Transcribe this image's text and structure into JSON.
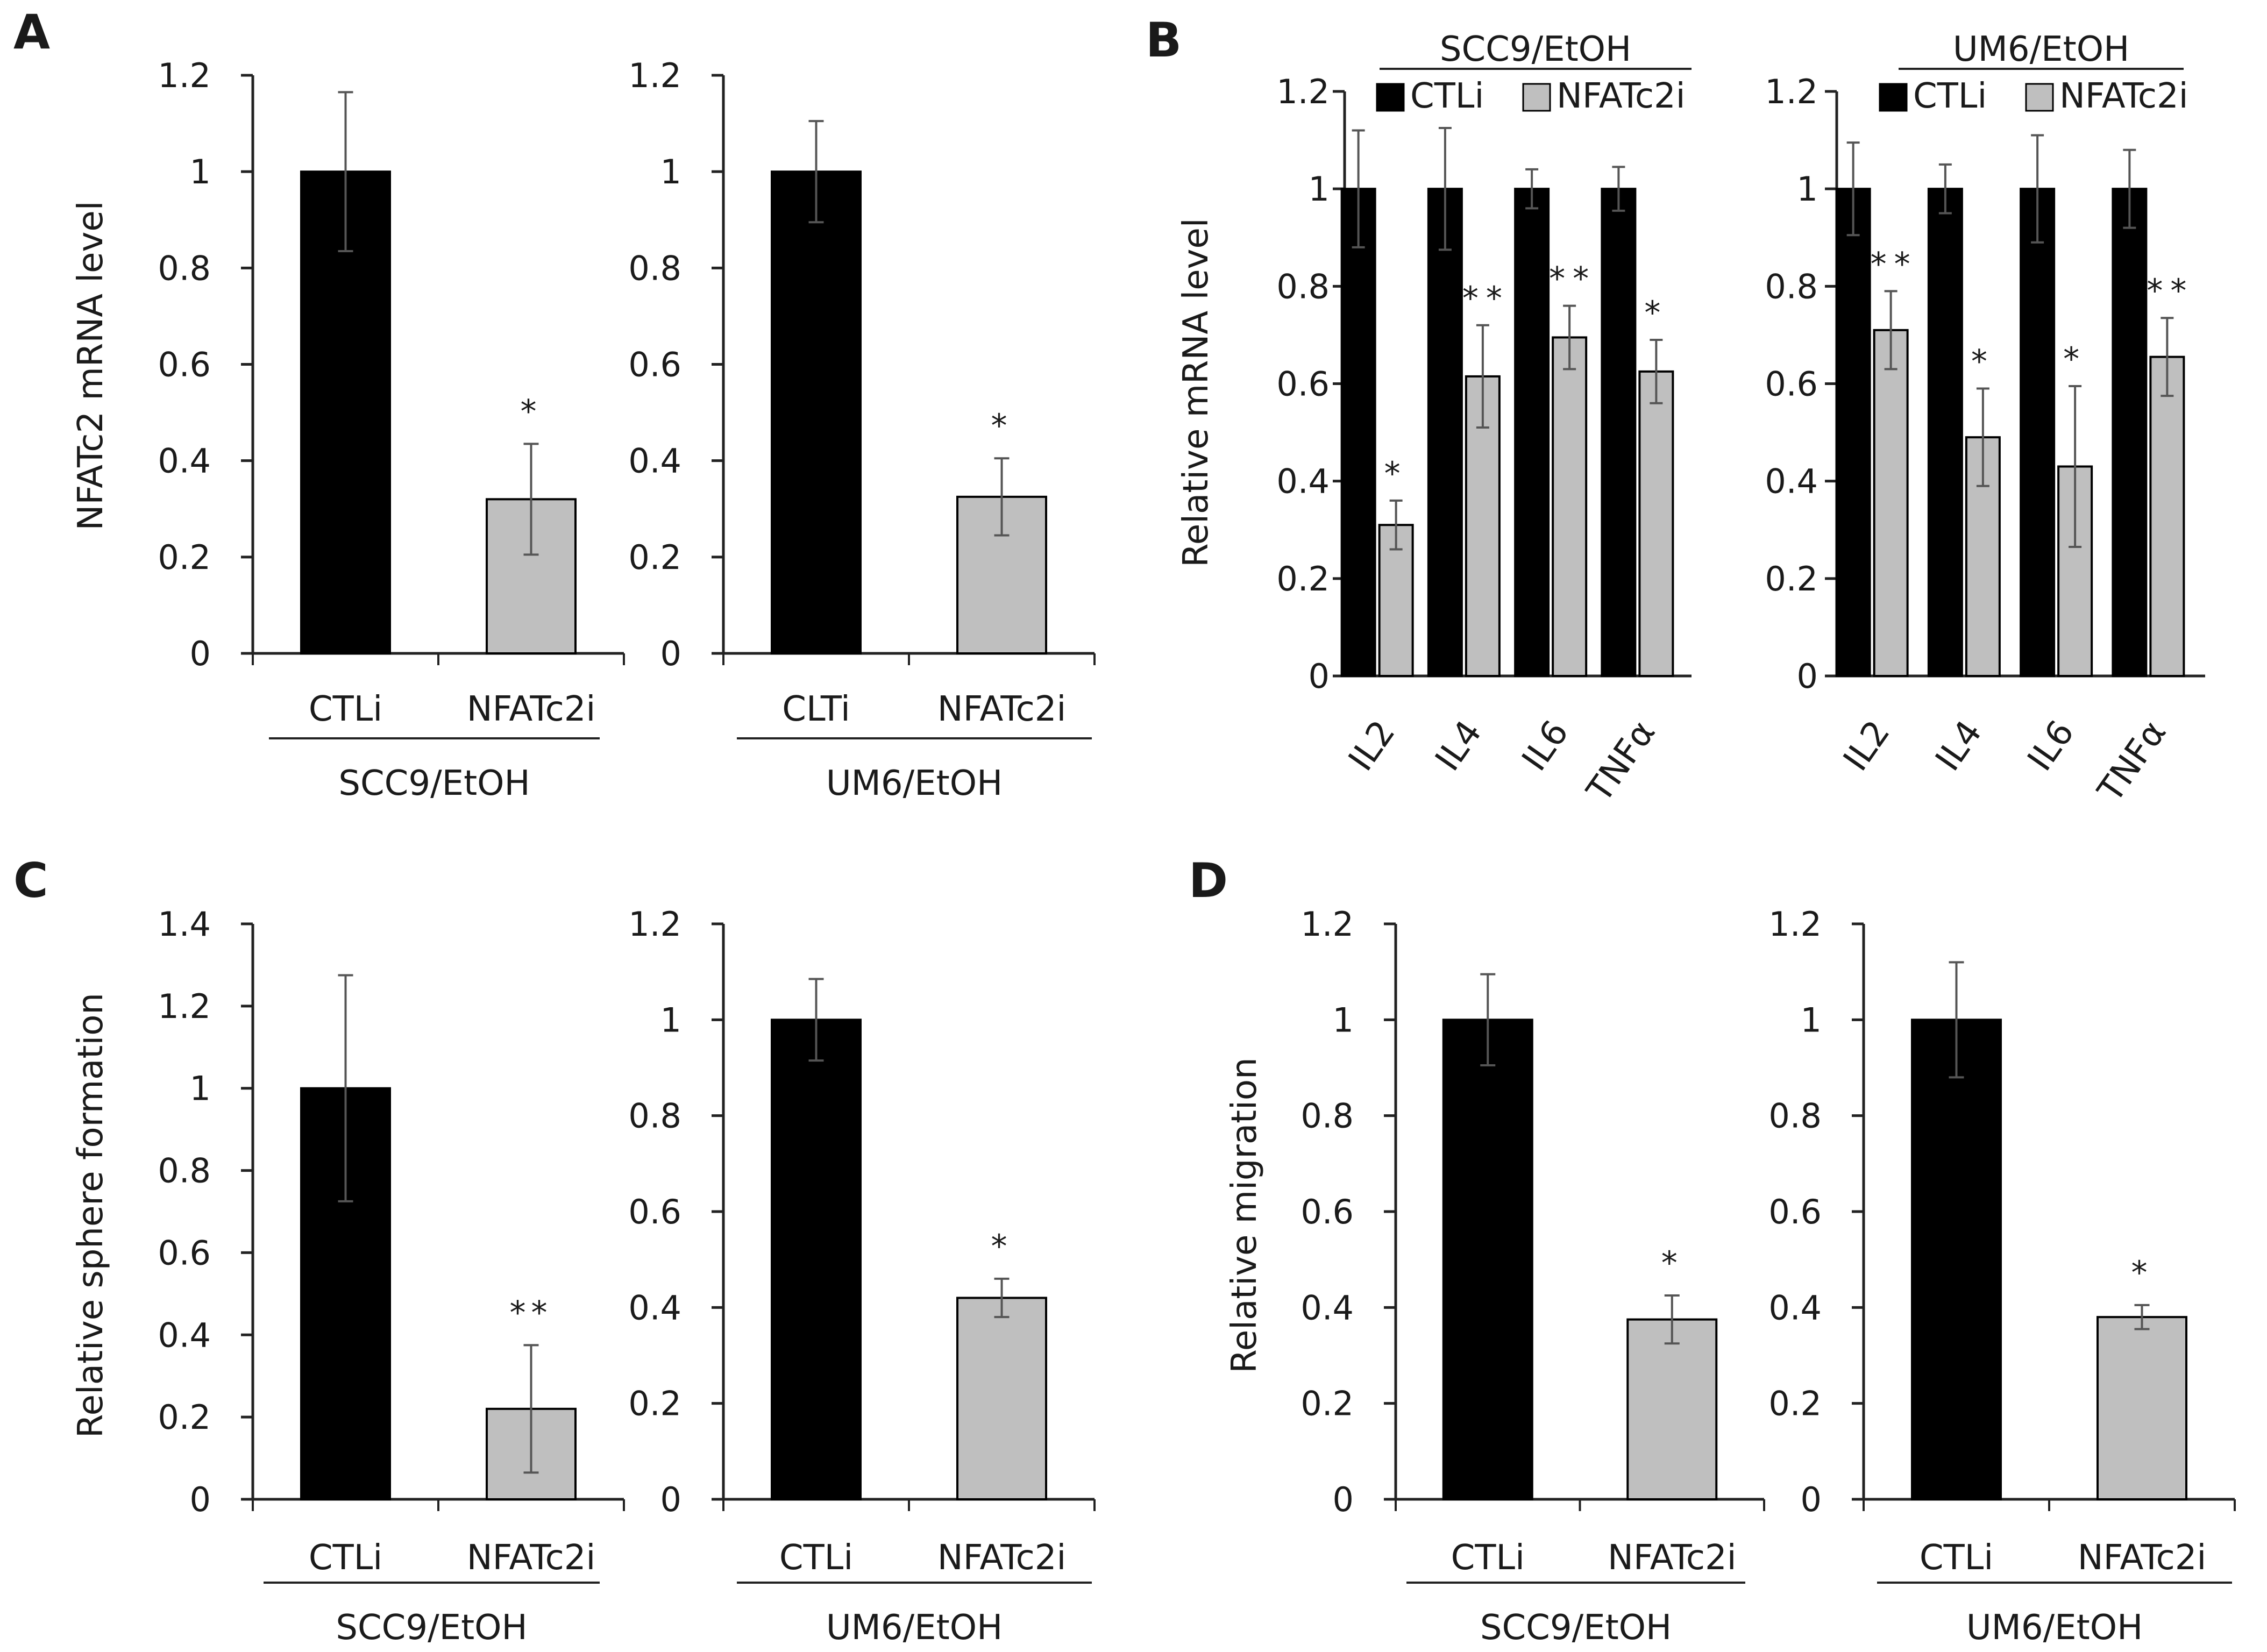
{
  "chart_data": [
    {
      "panel": "A",
      "type": "bar",
      "ylabel": "NFATc2 mRNA level",
      "ylim": [
        0,
        1.2
      ],
      "yticks": [
        "0",
        "0.2",
        "0.4",
        "0.6",
        "0.8",
        "1",
        "1.2"
      ],
      "categories": [
        "CTLi",
        "NFATc2i"
      ],
      "group_label": "SCC9/EtOH",
      "values": [
        1.0,
        0.32
      ],
      "errors": [
        0.165,
        0.115
      ],
      "significance": [
        "",
        "*"
      ],
      "colors": [
        "#000000",
        "#bfbfbf"
      ]
    },
    {
      "panel": "",
      "type": "bar",
      "ylabel": "",
      "ylim": [
        0,
        1.2
      ],
      "yticks": [
        "0",
        "0.2",
        "0.4",
        "0.6",
        "0.8",
        "1",
        "1.2"
      ],
      "categories": [
        "CLTi",
        "NFATc2i"
      ],
      "group_label": "UM6/EtOH",
      "values": [
        1.0,
        0.325
      ],
      "errors": [
        0.105,
        0.08
      ],
      "significance": [
        "",
        "*"
      ],
      "colors": [
        "#000000",
        "#bfbfbf"
      ]
    },
    {
      "panel": "B",
      "type": "bar",
      "ylabel": "Relative mRNA level",
      "ylim": [
        0,
        1.2
      ],
      "yticks": [
        "0",
        "0.2",
        "0.4",
        "0.6",
        "0.8",
        "1",
        "1.2"
      ],
      "title": "SCC9/EtOH",
      "categories": [
        "IL2",
        "IL4",
        "IL6",
        "TNFα"
      ],
      "legend": [
        "CTLi",
        "NFATc2i"
      ],
      "series": [
        {
          "name": "CTLi",
          "values": [
            1.0,
            1.0,
            1.0,
            1.0
          ],
          "errors": [
            0.12,
            0.125,
            0.04,
            0.045
          ],
          "significance": [
            "",
            "",
            "",
            ""
          ],
          "color": "#000000"
        },
        {
          "name": "NFATc2i",
          "values": [
            0.31,
            0.615,
            0.695,
            0.625
          ],
          "errors": [
            0.05,
            0.105,
            0.065,
            0.065
          ],
          "significance": [
            "*",
            "**",
            "**",
            "*"
          ],
          "color": "#bfbfbf"
        }
      ]
    },
    {
      "panel": "",
      "type": "bar",
      "ylabel": "",
      "ylim": [
        0,
        1.2
      ],
      "yticks": [
        "0",
        "0.2",
        "0.4",
        "0.6",
        "0.8",
        "1",
        "1.2"
      ],
      "title": "UM6/EtOH",
      "categories": [
        "IL2",
        "IL4",
        "IL6",
        "TNFα"
      ],
      "legend": [
        "CTLi",
        "NFATc2i"
      ],
      "series": [
        {
          "name": "CTLi",
          "values": [
            1.0,
            1.0,
            1.0,
            1.0
          ],
          "errors": [
            0.095,
            0.05,
            0.11,
            0.08
          ],
          "significance": [
            "",
            "",
            "",
            ""
          ],
          "color": "#000000"
        },
        {
          "name": "NFATc2i",
          "values": [
            0.71,
            0.49,
            0.43,
            0.655
          ],
          "errors": [
            0.08,
            0.1,
            0.165,
            0.08
          ],
          "significance": [
            "**",
            "*",
            "*",
            "**"
          ],
          "color": "#bfbfbf"
        }
      ]
    },
    {
      "panel": "C",
      "type": "bar",
      "ylabel": "Relative sphere formation",
      "ylim": [
        0,
        1.4
      ],
      "yticks": [
        "0",
        "0.2",
        "0.4",
        "0.6",
        "0.8",
        "1",
        "1.2",
        "1.4"
      ],
      "categories": [
        "CTLi",
        "NFATc2i"
      ],
      "group_label": "SCC9/EtOH",
      "values": [
        1.0,
        0.22
      ],
      "errors": [
        0.275,
        0.155
      ],
      "significance": [
        "",
        "**"
      ],
      "colors": [
        "#000000",
        "#bfbfbf"
      ]
    },
    {
      "panel": "",
      "type": "bar",
      "ylabel": "",
      "ylim": [
        0,
        1.2
      ],
      "yticks": [
        "0",
        "0.2",
        "0.4",
        "0.6",
        "0.8",
        "1",
        "1.2"
      ],
      "categories": [
        "CTLi",
        "NFATc2i"
      ],
      "group_label": "UM6/EtOH",
      "values": [
        1.0,
        0.42
      ],
      "errors": [
        0.085,
        0.04
      ],
      "significance": [
        "",
        "*"
      ],
      "colors": [
        "#000000",
        "#bfbfbf"
      ]
    },
    {
      "panel": "D",
      "type": "bar",
      "ylabel": "Relative migration",
      "ylim": [
        0,
        1.2
      ],
      "yticks": [
        "0",
        "0.2",
        "0.4",
        "0.6",
        "0.8",
        "1",
        "1.2"
      ],
      "categories": [
        "CTLi",
        "NFATc2i"
      ],
      "group_label": "SCC9/EtOH",
      "values": [
        1.0,
        0.375
      ],
      "errors": [
        0.095,
        0.05
      ],
      "significance": [
        "",
        "*"
      ],
      "colors": [
        "#000000",
        "#bfbfbf"
      ]
    },
    {
      "panel": "",
      "type": "bar",
      "ylabel": "",
      "ylim": [
        0,
        1.2
      ],
      "yticks": [
        "0",
        "0.2",
        "0.4",
        "0.6",
        "0.8",
        "1",
        "1.2"
      ],
      "categories": [
        "CTLi",
        "NFATc2i"
      ],
      "group_label": "UM6/EtOH",
      "values": [
        1.0,
        0.38
      ],
      "errors": [
        0.12,
        0.025
      ],
      "significance": [
        "",
        "*"
      ],
      "colors": [
        "#000000",
        "#bfbfbf"
      ]
    }
  ]
}
